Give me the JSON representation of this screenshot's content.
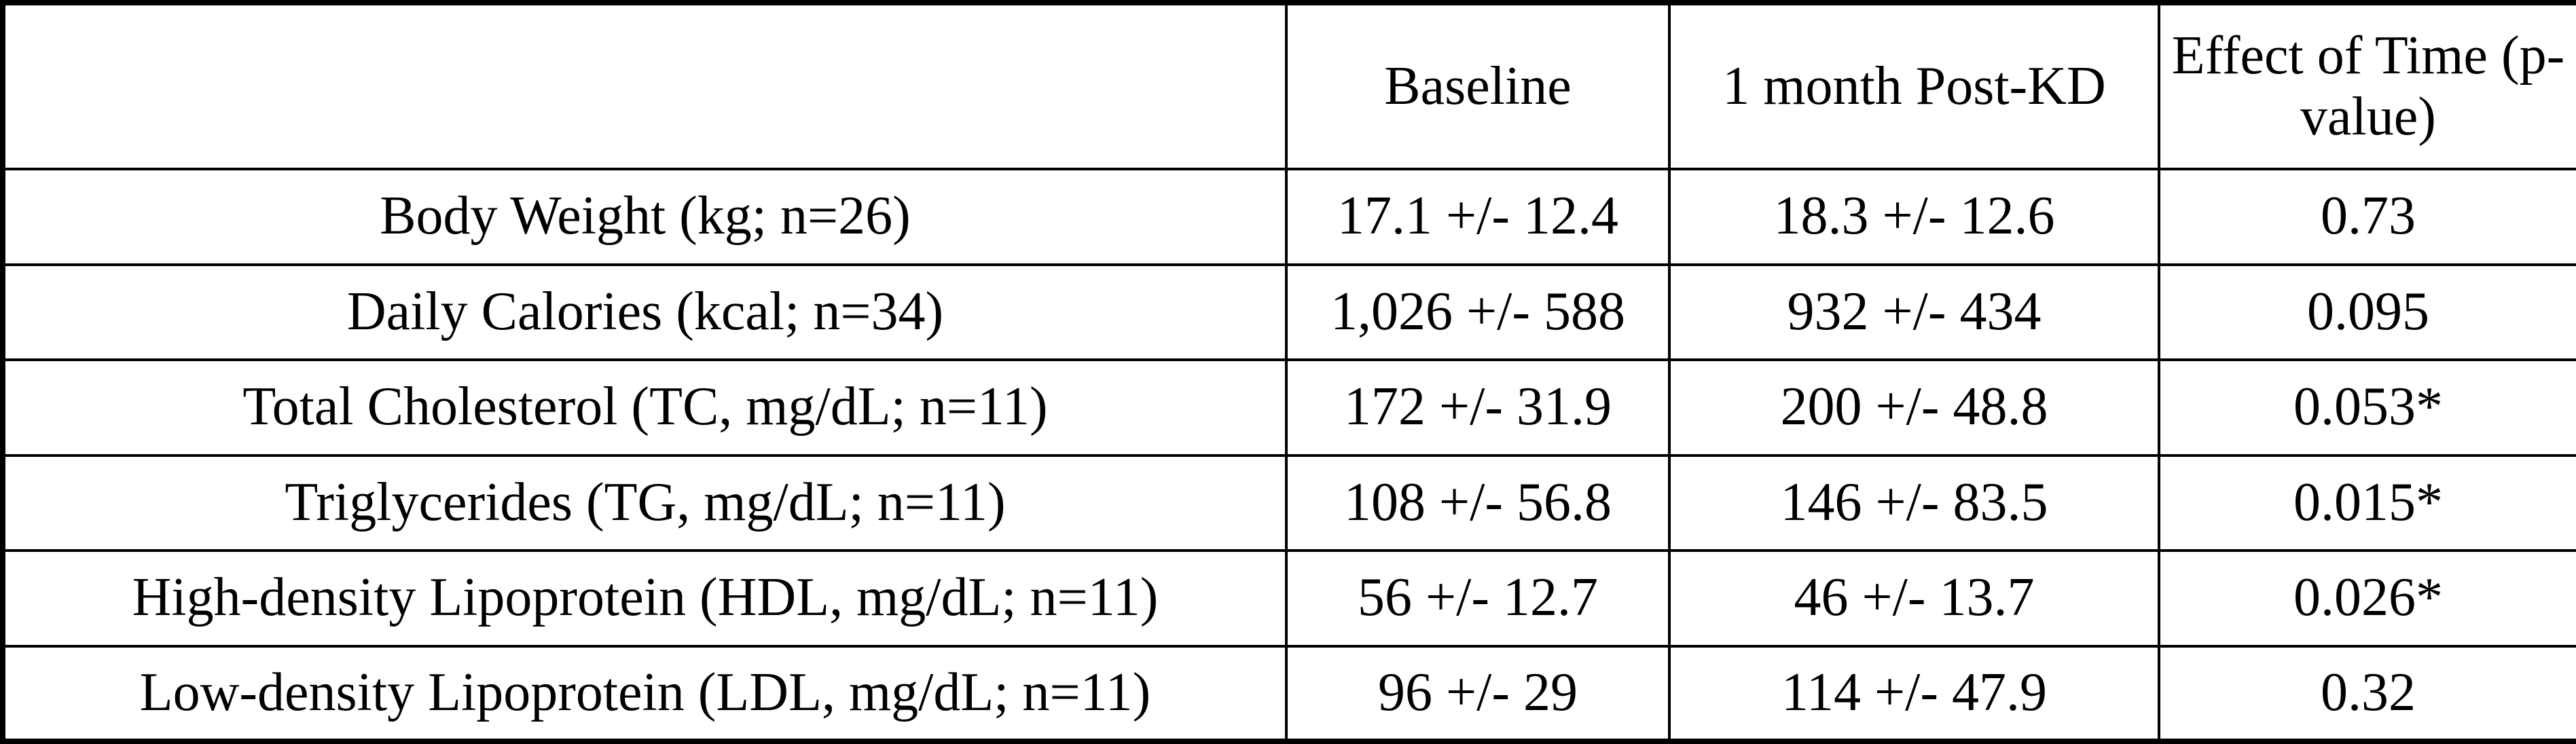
{
  "table": {
    "columns": [
      "Baseline",
      "1 month Post-KD",
      "Effect of Time (p-value)"
    ],
    "rows": [
      [
        "Body Weight (kg; n=26)",
        "17.1 +/- 12.4",
        "18.3 +/- 12.6",
        "0.73"
      ],
      [
        "Daily Calories (kcal; n=34)",
        "1,026 +/- 588",
        "932 +/- 434",
        "0.095"
      ],
      [
        "Total Cholesterol (TC, mg/dL; n=11)",
        "172 +/- 31.9",
        "200 +/- 48.8",
        "0.053*"
      ],
      [
        "Triglycerides (TG, mg/dL; n=11)",
        "108 +/- 56.8",
        "146 +/- 83.5",
        "0.015*"
      ],
      [
        "High-density Lipoprotein (HDL, mg/dL; n=11)",
        "56 +/- 12.7",
        "46 +/- 13.7",
        "0.026*"
      ],
      [
        "Low-density Lipoprotein (LDL, mg/dL; n=11)",
        "96 +/- 29",
        "114 +/- 47.9",
        "0.32"
      ]
    ]
  }
}
